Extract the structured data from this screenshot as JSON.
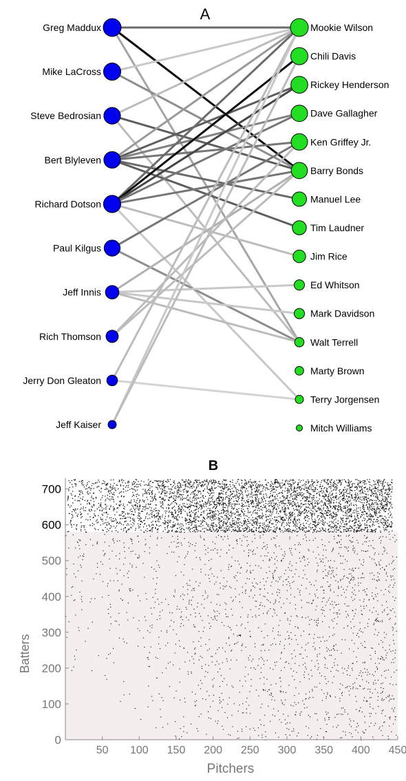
{
  "chart_data": [
    {
      "type": "bipartite",
      "title": "A",
      "pitchers": [
        {
          "name": "Greg Maddux",
          "weight": 1.0
        },
        {
          "name": "Mike LaCross",
          "weight": 0.95
        },
        {
          "name": "Steve Bedrosian",
          "weight": 0.9
        },
        {
          "name": "Bert Blyleven",
          "weight": 0.9
        },
        {
          "name": "Richard Dotson",
          "weight": 0.95
        },
        {
          "name": "Paul Kilgus",
          "weight": 0.85
        },
        {
          "name": "Jeff Innis",
          "weight": 0.65
        },
        {
          "name": "Rich Thomson",
          "weight": 0.55
        },
        {
          "name": "Jerry Don Gleaton",
          "weight": 0.42
        },
        {
          "name": "Jeff Kaiser",
          "weight": 0.22
        }
      ],
      "batters": [
        {
          "name": "Mookie Wilson",
          "weight": 1.0
        },
        {
          "name": "Chili Davis",
          "weight": 0.95
        },
        {
          "name": "Rickey Henderson",
          "weight": 0.93
        },
        {
          "name": "Dave Gallagher",
          "weight": 0.9
        },
        {
          "name": "Ken Griffey Jr.",
          "weight": 0.9
        },
        {
          "name": "Barry Bonds",
          "weight": 0.88
        },
        {
          "name": "Manuel Lee",
          "weight": 0.75
        },
        {
          "name": "Tim Laudner",
          "weight": 0.72
        },
        {
          "name": "Jim Rice",
          "weight": 0.62
        },
        {
          "name": "Ed Whitson",
          "weight": 0.45
        },
        {
          "name": "Mark Davidson",
          "weight": 0.45
        },
        {
          "name": "Walt Terrell",
          "weight": 0.38
        },
        {
          "name": "Marty Brown",
          "weight": 0.33
        },
        {
          "name": "Terry Jorgensen",
          "weight": 0.3
        },
        {
          "name": "Mitch Williams",
          "weight": 0.15
        }
      ],
      "edges": [
        [
          0,
          0,
          0.55
        ],
        [
          0,
          5,
          0.95
        ],
        [
          0,
          11,
          0.3
        ],
        [
          1,
          0,
          0.15
        ],
        [
          1,
          5,
          0.4
        ],
        [
          2,
          0,
          0.2
        ],
        [
          2,
          5,
          0.6
        ],
        [
          2,
          11,
          0.2
        ],
        [
          3,
          2,
          0.6
        ],
        [
          3,
          3,
          0.45
        ],
        [
          3,
          4,
          0.5
        ],
        [
          3,
          6,
          0.55
        ],
        [
          3,
          7,
          0.6
        ],
        [
          3,
          0,
          0.35
        ],
        [
          4,
          0,
          0.55
        ],
        [
          4,
          1,
          0.95
        ],
        [
          4,
          2,
          0.7
        ],
        [
          4,
          3,
          0.5
        ],
        [
          4,
          5,
          0.5
        ],
        [
          4,
          8,
          0.2
        ],
        [
          4,
          13,
          0.15
        ],
        [
          5,
          4,
          0.5
        ],
        [
          5,
          11,
          0.4
        ],
        [
          6,
          5,
          0.25
        ],
        [
          6,
          9,
          0.15
        ],
        [
          6,
          10,
          0.15
        ],
        [
          6,
          11,
          0.2
        ],
        [
          7,
          5,
          0.2
        ],
        [
          7,
          4,
          0.2
        ],
        [
          8,
          0,
          0.2
        ],
        [
          8,
          13,
          0.1
        ],
        [
          9,
          0,
          0.15
        ],
        [
          9,
          1,
          0.2
        ]
      ],
      "colors": {
        "pitcher": "#0000ee",
        "batter": "#22dd22",
        "edge": "#000000"
      }
    },
    {
      "type": "scatter",
      "title": "B",
      "xlabel": "Pitchers",
      "ylabel": "Batters",
      "xlim": [
        0,
        450
      ],
      "ylim": [
        0,
        730
      ],
      "xticks": [
        50,
        100,
        150,
        200,
        250,
        300,
        350,
        400,
        450
      ],
      "yticks": [
        0,
        100,
        200,
        300,
        400,
        500,
        600,
        700
      ],
      "density_note": "upper-triangular sparse matrix; dense region for batters above ~580",
      "colors": {
        "point": "#111111",
        "background_lower": "#f5eeee"
      }
    }
  ]
}
